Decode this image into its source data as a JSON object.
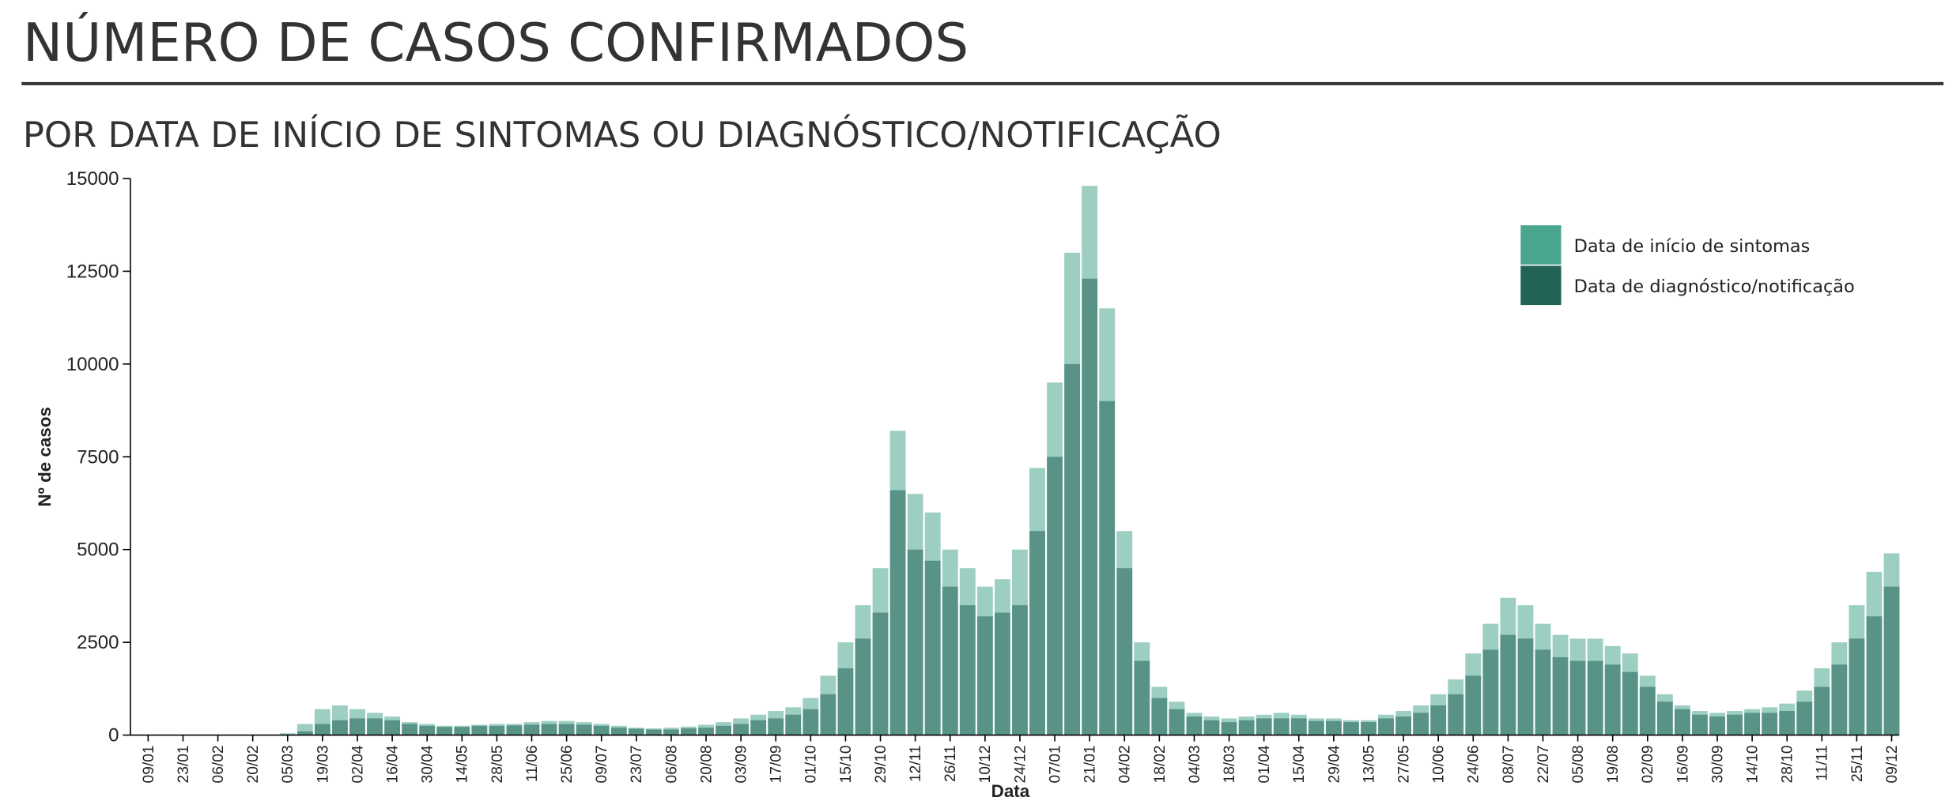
{
  "chart_data": {
    "type": "bar",
    "title": "NÚMERO DE CASOS CONFIRMADOS",
    "subtitle": "POR DATA DE INÍCIO DE SINTOMAS OU DIAGNÓSTICO/NOTIFICAÇÃO",
    "x_label": "Data",
    "y_label": "Nº de casos",
    "categories": [
      "09/01",
      null,
      "23/01",
      null,
      "06/02",
      null,
      "20/02",
      null,
      "05/03",
      null,
      "19/03",
      null,
      "02/04",
      null,
      "16/04",
      null,
      "30/04",
      null,
      "14/05",
      null,
      "28/05",
      null,
      "11/06",
      null,
      "25/06",
      null,
      "09/07",
      null,
      "23/07",
      null,
      "06/08",
      null,
      "20/08",
      null,
      "03/09",
      null,
      "17/09",
      null,
      "01/10",
      null,
      "15/10",
      null,
      "29/10",
      null,
      "12/11",
      null,
      "26/11",
      null,
      "10/12",
      null,
      "24/12",
      null,
      "07/01",
      null,
      "21/01",
      null,
      "04/02",
      null,
      "18/02",
      null,
      "04/03",
      null,
      "18/03",
      null,
      "01/04",
      null,
      "15/04",
      null,
      "29/04",
      null,
      "13/05",
      null,
      "27/05",
      null,
      "10/06",
      null,
      "24/06",
      null,
      "08/07",
      null,
      "22/07",
      null,
      "05/08",
      null,
      "19/08",
      null,
      "02/09",
      null,
      "16/09",
      null,
      "30/09",
      null,
      "14/10",
      null,
      "28/10",
      null,
      "11/11",
      null,
      "25/11",
      null,
      "09/12"
    ],
    "series": [
      {
        "name": "Data de início de sintomas",
        "color": "#4aa58f",
        "values": [
          0,
          0,
          0,
          0,
          0,
          0,
          0,
          0,
          50,
          300,
          700,
          800,
          700,
          600,
          500,
          350,
          300,
          250,
          250,
          280,
          300,
          300,
          350,
          380,
          380,
          350,
          300,
          250,
          200,
          180,
          200,
          230,
          280,
          350,
          450,
          550,
          650,
          750,
          1000,
          1600,
          2500,
          3500,
          4500,
          8200,
          6500,
          6000,
          5000,
          4500,
          4000,
          4200,
          5000,
          7200,
          9500,
          13000,
          14800,
          11500,
          5500,
          2500,
          1300,
          900,
          600,
          500,
          450,
          500,
          550,
          600,
          550,
          450,
          450,
          400,
          400,
          550,
          650,
          800,
          1100,
          1500,
          2200,
          3000,
          3700,
          3500,
          3000,
          2700,
          2600,
          2600,
          2400,
          2200,
          1600,
          1100,
          800,
          650,
          600,
          650,
          700,
          750,
          850,
          1200,
          1800,
          2500,
          3500,
          4400,
          4900
        ]
      },
      {
        "name": "Data de diagnóstico/notificação",
        "color": "#236357",
        "values": [
          0,
          0,
          0,
          0,
          0,
          0,
          0,
          0,
          0,
          100,
          300,
          400,
          450,
          450,
          400,
          300,
          250,
          220,
          220,
          250,
          250,
          260,
          280,
          300,
          300,
          280,
          250,
          200,
          170,
          150,
          150,
          180,
          200,
          250,
          300,
          400,
          450,
          550,
          700,
          1100,
          1800,
          2600,
          3300,
          6600,
          5000,
          4700,
          4000,
          3500,
          3200,
          3300,
          3500,
          5500,
          7500,
          10000,
          12300,
          9000,
          4500,
          2000,
          1000,
          700,
          500,
          400,
          350,
          400,
          450,
          450,
          450,
          380,
          380,
          350,
          350,
          450,
          500,
          600,
          800,
          1100,
          1600,
          2300,
          2700,
          2600,
          2300,
          2100,
          2000,
          2000,
          1900,
          1700,
          1300,
          900,
          700,
          550,
          500,
          550,
          600,
          600,
          650,
          900,
          1300,
          1900,
          2600,
          3200,
          4000
        ]
      }
    ],
    "ylim": [
      0,
      15000
    ],
    "yticks": [
      0,
      2500,
      5000,
      7500,
      10000,
      12500,
      15000
    ],
    "legend": "top-right"
  }
}
